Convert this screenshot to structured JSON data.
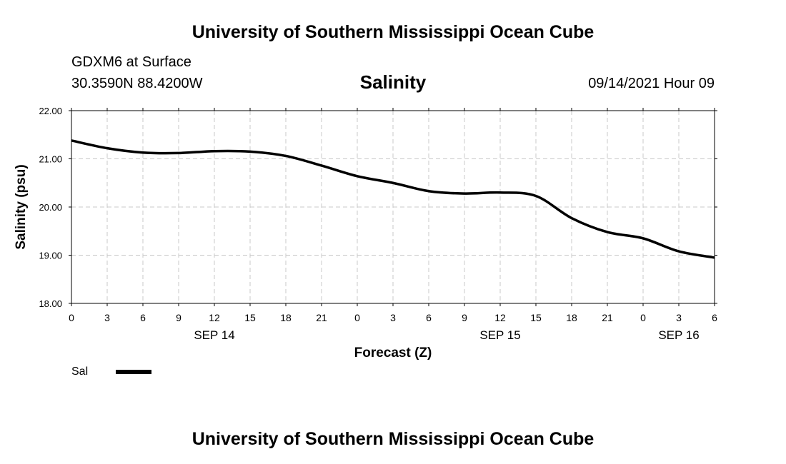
{
  "header": {
    "title": "University of Southern Mississippi Ocean Cube",
    "station": "GDXM6 at Surface",
    "coords": "30.3590N  88.4200W",
    "variable": "Salinity",
    "datetime": "09/14/2021 Hour 09"
  },
  "footer": {
    "title": "University of Southern Mississippi Ocean Cube"
  },
  "chart_data": {
    "type": "line",
    "title": "Salinity",
    "xlabel": "Forecast (Z)",
    "ylabel": "Salinity (psu)",
    "ylim": [
      18.0,
      22.0
    ],
    "xlim": [
      0,
      54
    ],
    "grid": true,
    "yticks": [
      18.0,
      19.0,
      20.0,
      21.0,
      22.0
    ],
    "ytick_labels": [
      "18.00",
      "19.00",
      "20.00",
      "21.00",
      "22.00"
    ],
    "xticks": [
      0,
      3,
      6,
      9,
      12,
      15,
      18,
      21,
      24,
      27,
      30,
      33,
      36,
      39,
      42,
      45,
      48,
      51,
      54
    ],
    "xtick_labels": [
      "0",
      "3",
      "6",
      "9",
      "12",
      "15",
      "18",
      "21",
      "0",
      "3",
      "6",
      "9",
      "12",
      "15",
      "18",
      "21",
      "0",
      "3",
      "6"
    ],
    "date_labels": [
      {
        "label": "SEP 14",
        "x": 12
      },
      {
        "label": "SEP 15",
        "x": 36
      },
      {
        "label": "SEP 16",
        "x": 51
      }
    ],
    "legend": {
      "position": "bottom-left",
      "entries": [
        "Sal"
      ]
    },
    "series": [
      {
        "name": "Sal",
        "color": "#000000",
        "x": [
          0,
          3,
          6,
          9,
          12,
          15,
          18,
          21,
          24,
          27,
          30,
          33,
          36,
          39,
          42,
          45,
          48,
          51,
          54
        ],
        "values": [
          21.38,
          21.22,
          21.13,
          21.12,
          21.16,
          21.15,
          21.06,
          20.86,
          20.64,
          20.5,
          20.33,
          20.28,
          20.3,
          20.23,
          19.77,
          19.48,
          19.35,
          19.08,
          18.95
        ]
      }
    ]
  }
}
